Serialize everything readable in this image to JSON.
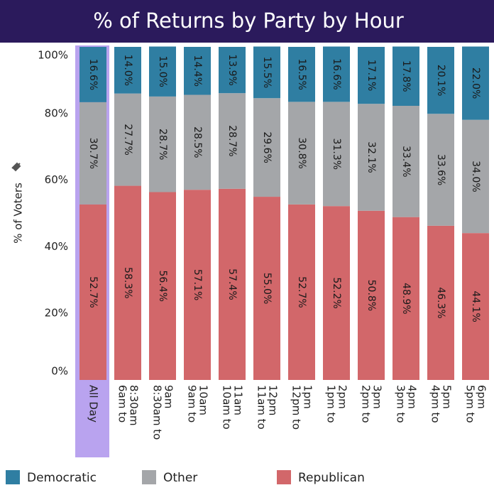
{
  "chart_data": {
    "type": "stacked_bar",
    "title": "% of Returns by Party by Hour",
    "y_label": "% of Voters",
    "categories": [
      [
        "All Day"
      ],
      [
        "6am to",
        "8:30am"
      ],
      [
        "8:30am to",
        "9am"
      ],
      [
        "9am to",
        "10am"
      ],
      [
        "10am to",
        "11am"
      ],
      [
        "11am to",
        "12pm"
      ],
      [
        "12pm to",
        "1pm"
      ],
      [
        "1pm to",
        "2pm"
      ],
      [
        "2pm to",
        "3pm"
      ],
      [
        "3pm to",
        "4pm"
      ],
      [
        "4pm to",
        "5pm"
      ],
      [
        "5pm to",
        "6pm"
      ]
    ],
    "series": [
      {
        "name": "Democratic",
        "color": "#2f7ea2",
        "values": [
          16.6,
          14.0,
          15.0,
          14.4,
          13.9,
          15.5,
          16.5,
          16.6,
          17.1,
          17.8,
          20.1,
          22.0
        ],
        "value_labels": [
          "16.6%",
          "14.0%",
          "15.0%",
          "14.4%",
          "13.9%",
          "15.5%",
          "16.5%",
          "16.6%",
          "17.1%",
          "17.8%",
          "20.1%",
          "22.0%"
        ]
      },
      {
        "name": "Other",
        "color": "#a4a6a9",
        "values": [
          30.7,
          27.7,
          28.7,
          28.5,
          28.7,
          29.6,
          30.8,
          31.3,
          32.1,
          33.4,
          33.6,
          34.0
        ],
        "value_labels": [
          "30.7%",
          "27.7%",
          "28.7%",
          "28.5%",
          "28.7%",
          "29.6%",
          "30.8%",
          "31.3%",
          "32.1%",
          "33.4%",
          "33.6%",
          "34.0%"
        ]
      },
      {
        "name": "Republican",
        "color": "#d2676a",
        "values": [
          52.7,
          58.3,
          56.4,
          57.1,
          57.4,
          55.0,
          52.7,
          52.2,
          50.8,
          48.9,
          46.3,
          44.1
        ],
        "value_labels": [
          "52.7%",
          "58.3%",
          "56.4%",
          "57.1%",
          "57.4%",
          "55.0%",
          "52.7%",
          "52.2%",
          "50.8%",
          "48.9%",
          "46.3%",
          "44.1%"
        ]
      }
    ],
    "ylim": [
      0,
      100
    ],
    "yticks": [
      {
        "value": 0,
        "label": "0%"
      },
      {
        "value": 20,
        "label": "20%"
      },
      {
        "value": 40,
        "label": "40%"
      },
      {
        "value": 60,
        "label": "60%"
      },
      {
        "value": 80,
        "label": "80%"
      },
      {
        "value": 100,
        "label": "100%"
      }
    ]
  }
}
